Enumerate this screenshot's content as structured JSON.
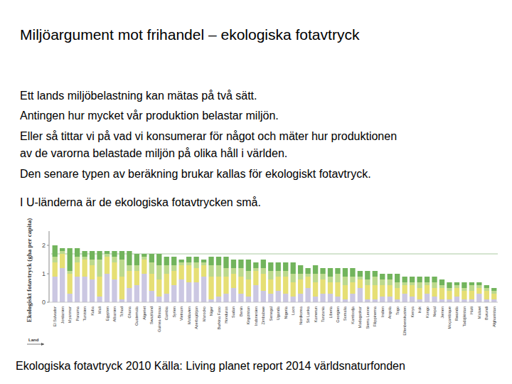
{
  "slide": {
    "title": "Miljöargument mot frihandel – ekologiska fotavtryck",
    "paragraphs": [
      [
        "Ett lands miljöbelastning kan mätas på två sätt."
      ],
      [
        "Antingen hur mycket vår produktion belastar miljön."
      ],
      [
        "Eller så tittar vi på vad vi konsumerar för något och mäter hur produktionen",
        "av de varorna belastade miljön på olika håll i världen."
      ],
      [
        "Den senare typen av beräkning brukar kallas för ekologiskt fotavtryck."
      ],
      [
        "I U-länderna är de ekologiska fotavtrycken små."
      ]
    ],
    "caption": "Ekologiska fotavtryck 2010 Källa: Living planet report 2014 världsnaturfonden"
  },
  "chart_data": {
    "type": "bar",
    "stacked": true,
    "grid": false,
    "y_label": "Ekologiskt fotavtryck (gha per capita)",
    "x_label": "Land",
    "ylim": [
      0,
      2.5
    ],
    "yticks": [
      0,
      1,
      2
    ],
    "reference_line": 1.7,
    "categories": [
      "El Salvador",
      "Jordanien",
      "Myanmar",
      "Panama",
      "Tunisien",
      "Kuba",
      "Mali",
      "Egypten",
      "Albanien",
      "Tchad",
      "Ghana",
      "Guatemala",
      "Algeriet",
      "Swaziland",
      "Guinea-Bissau",
      "Gambia",
      "Syrien",
      "Vietnam",
      "Moldavien",
      "Azerbajdzjan",
      "Marocko",
      "Niger",
      "Burkina Faso",
      "Honduras",
      "Sudan",
      "Benin",
      "Kirgizistan",
      "Indonesien",
      "Zimbabwe",
      "Senegal",
      "Uganda",
      "Nigeria",
      "Laos",
      "Nordkorea",
      "Sri Lanka",
      "Kamerun",
      "Tanzania",
      "Liberia",
      "Georgien",
      "Somalia",
      "Kambodja",
      "Madagaskar",
      "Sierra Leone",
      "Filippinerna",
      "Indien",
      "Angola",
      "Togo",
      "Elfenbenskusten",
      "Kenya",
      "Irak",
      "Kongo",
      "Nepal",
      "Jemen",
      "Moçambique",
      "Rwanda",
      "Tadzjikistan",
      "Haiti",
      "Malawi",
      "Burundi",
      "Afghanistan"
    ],
    "series": [
      {
        "color": "#cbc7e2",
        "values": [
          0.9,
          1.2,
          0.3,
          0.9,
          0.9,
          0.8,
          0.2,
          1.0,
          0.8,
          0.1,
          0.5,
          0.6,
          1.0,
          0.4,
          0.2,
          0.3,
          0.6,
          0.8,
          0.7,
          0.7,
          0.9,
          0.1,
          0.2,
          0.3,
          0.5,
          0.3,
          0.2,
          0.6,
          0.4,
          0.3,
          0.4,
          0.3,
          0.2,
          0.3,
          0.5,
          0.2,
          0.3,
          0.3,
          0.2,
          0.1,
          0.3,
          0.5,
          0.1,
          0.1,
          0.2,
          0.2,
          0.1,
          0.3,
          0.2,
          0.1,
          0.3,
          0.2,
          0.1,
          0.1,
          0.2,
          0.1,
          0.1,
          0.3,
          0.1,
          0.1
        ]
      },
      {
        "color": "#e6df74",
        "values": [
          0.5,
          0.5,
          0.7,
          0.5,
          0.6,
          0.5,
          0.7,
          0.6,
          0.6,
          0.8,
          0.6,
          0.5,
          0.5,
          0.6,
          0.6,
          0.7,
          0.5,
          0.5,
          0.6,
          0.5,
          0.4,
          0.8,
          0.7,
          0.6,
          0.5,
          0.6,
          0.6,
          0.5,
          0.6,
          0.5,
          0.5,
          0.6,
          0.5,
          0.5,
          0.4,
          0.5,
          0.5,
          0.4,
          0.5,
          0.5,
          0.4,
          0.3,
          0.5,
          0.5,
          0.4,
          0.4,
          0.4,
          0.3,
          0.4,
          0.4,
          0.3,
          0.3,
          0.4,
          0.3,
          0.3,
          0.3,
          0.3,
          0.2,
          0.3,
          0.2
        ]
      },
      {
        "color": "#bcd98c",
        "values": [
          0.2,
          0.1,
          0.1,
          0.2,
          0.1,
          0.2,
          0.6,
          0.1,
          0.2,
          0.6,
          0.2,
          0.2,
          0.1,
          0.4,
          0.5,
          0.3,
          0.2,
          0.1,
          0.1,
          0.2,
          0.1,
          0.4,
          0.4,
          0.3,
          0.2,
          0.3,
          0.3,
          0.1,
          0.2,
          0.3,
          0.2,
          0.2,
          0.3,
          0.2,
          0.1,
          0.3,
          0.2,
          0.2,
          0.3,
          0.3,
          0.2,
          0.1,
          0.2,
          0.3,
          0.2,
          0.2,
          0.2,
          0.1,
          0.1,
          0.2,
          0.1,
          0.2,
          0.1,
          0.1,
          0.1,
          0.1,
          0.2,
          0.1,
          0.1,
          0.1
        ]
      },
      {
        "color": "#72b45c",
        "values": [
          0.4,
          0.1,
          0.8,
          0.3,
          0.2,
          0.3,
          0.3,
          0.1,
          0.2,
          0.3,
          0.5,
          0.4,
          0.1,
          0.3,
          0.4,
          0.3,
          0.3,
          0.1,
          0.2,
          0.2,
          0.1,
          0.3,
          0.3,
          0.4,
          0.3,
          0.3,
          0.4,
          0.2,
          0.3,
          0.3,
          0.3,
          0.3,
          0.4,
          0.3,
          0.2,
          0.3,
          0.2,
          0.3,
          0.2,
          0.3,
          0.3,
          0.2,
          0.3,
          0.2,
          0.2,
          0.2,
          0.3,
          0.2,
          0.2,
          0.2,
          0.2,
          0.2,
          0.2,
          0.2,
          0.1,
          0.2,
          0.1,
          0.1,
          0.1,
          0.1
        ]
      }
    ]
  }
}
